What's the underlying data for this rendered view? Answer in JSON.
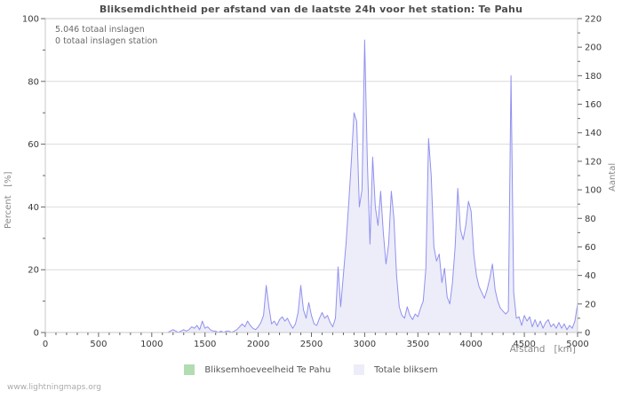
{
  "watermark": "www.lightningmaps.org",
  "chart_data": {
    "type": "area",
    "title": "Bliksemdichtheid per afstand van de laatste 24h voor het station: Te Pahu",
    "xlabel": "Afstand   [km]",
    "ylabel_left": "Percent   [%]",
    "ylabel_right": "Aantal",
    "annotations": [
      "5.046 totaal inslagen",
      "0 totaal inslagen station"
    ],
    "x_range": [
      0,
      5000
    ],
    "x_major_step": 500,
    "x_minor_step": 100,
    "y_left_range": [
      0,
      100
    ],
    "y_left_major_step": 20,
    "y_left_minor_step": 10,
    "y_right_range": [
      0,
      220
    ],
    "y_right_major_step": 20,
    "y_right_minor_step": 10,
    "gridlines_percent": [
      20,
      40,
      60,
      80
    ],
    "legend_position": "bottom",
    "x_start": 0,
    "x_step": 25,
    "series": [
      {
        "name": "Bliksemhoeveelheid Te Pahu",
        "color": "#b2dcb2",
        "axis": "left",
        "constant_value": 0
      },
      {
        "name": "Totale bliksem",
        "fill_color": "#ededf9",
        "line_color": "#9191ef",
        "axis": "right",
        "values": [
          0,
          0,
          0,
          0,
          0,
          0,
          0,
          0,
          0,
          0,
          0,
          0,
          0,
          0,
          0,
          0,
          0,
          0,
          0,
          0,
          0,
          0,
          0,
          0,
          0,
          0,
          0,
          0,
          0,
          0,
          0,
          0,
          0,
          0,
          0,
          0,
          0,
          0,
          0,
          0,
          0,
          0,
          0,
          0,
          0,
          0,
          0,
          1,
          2,
          1,
          0,
          1,
          2,
          1,
          2,
          4,
          3,
          5,
          2,
          8,
          3,
          4,
          2,
          1,
          1,
          0,
          1,
          0,
          1,
          1,
          0,
          1,
          2,
          4,
          6,
          4,
          8,
          5,
          3,
          2,
          4,
          7,
          12,
          33,
          18,
          6,
          8,
          5,
          9,
          11,
          8,
          10,
          6,
          3,
          6,
          14,
          33,
          16,
          10,
          21,
          12,
          6,
          5,
          10,
          14,
          10,
          12,
          7,
          4,
          10,
          46,
          18,
          40,
          62,
          90,
          120,
          154,
          148,
          88,
          100,
          205,
          120,
          62,
          123,
          88,
          75,
          99,
          70,
          48,
          62,
          99,
          80,
          40,
          18,
          12,
          10,
          18,
          12,
          9,
          13,
          11,
          17,
          22,
          45,
          136,
          110,
          60,
          50,
          55,
          35,
          45,
          25,
          20,
          35,
          60,
          101,
          72,
          65,
          75,
          92,
          85,
          55,
          40,
          32,
          28,
          24,
          30,
          38,
          48,
          30,
          22,
          17,
          15,
          13,
          15,
          180,
          28,
          10,
          11,
          5,
          12,
          8,
          11,
          4,
          9,
          4,
          8,
          3,
          7,
          9,
          4,
          6,
          3,
          7,
          3,
          6,
          2,
          5,
          3,
          8,
          20
        ]
      }
    ]
  }
}
